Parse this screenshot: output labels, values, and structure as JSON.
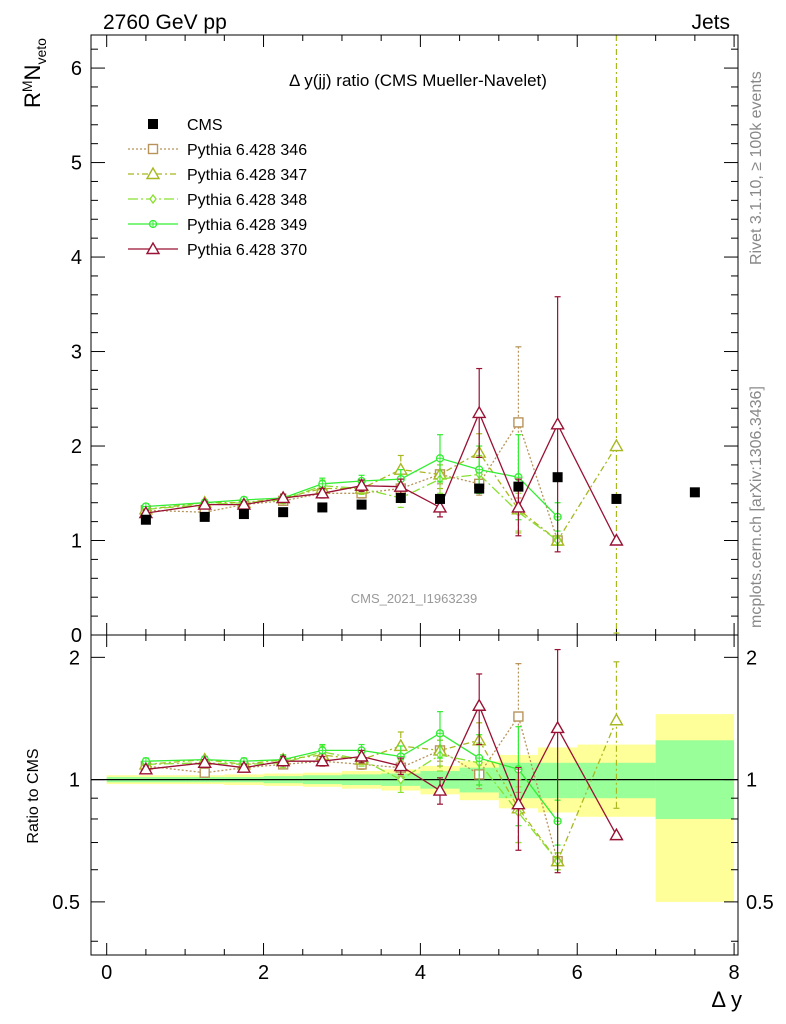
{
  "header": {
    "left": "2760 GeV pp",
    "right": "Jets"
  },
  "side_text": {
    "rivet": "Rivet 3.1.10, ≥ 100k events",
    "mcplots": "mcplots.cern.ch [arXiv:1306.3436]"
  },
  "watermark": "CMS_2021_I1963239",
  "colors": {
    "cms": "#000000",
    "p346": "#b8945a",
    "p347": "#a8b820",
    "p348": "#88e030",
    "p349": "#33ee33",
    "p370": "#991133",
    "band_stat": "#99ff99",
    "band_total": "#ffff99"
  },
  "chart_data": [
    {
      "type": "line",
      "title": "Δ y(jj) ratio (CMS Mueller-Navelet)",
      "ylabel": "R^M N_veto",
      "xlim": [
        -0.2,
        8.05
      ],
      "ylim": [
        0,
        6.35
      ],
      "yticks": [
        "0",
        "1",
        "2",
        "3",
        "4",
        "5",
        "6"
      ],
      "legend_position": "top-left",
      "series": [
        {
          "name": "CMS",
          "marker": "filled-square",
          "x": [
            0.5,
            1.25,
            1.75,
            2.25,
            2.75,
            3.25,
            3.75,
            4.25,
            4.75,
            5.25,
            5.75,
            6.5,
            7.5
          ],
          "y": [
            1.22,
            1.25,
            1.28,
            1.3,
            1.35,
            1.38,
            1.45,
            1.44,
            1.55,
            1.57,
            1.67,
            1.44,
            1.51
          ]
        },
        {
          "name": "Pythia 6.428 346",
          "marker": "open-square",
          "dash": "dotted",
          "x": [
            0.5,
            1.25,
            1.75,
            2.25,
            2.75,
            3.25,
            3.75,
            4.25,
            4.75,
            5.25,
            5.75
          ],
          "y": [
            1.32,
            1.3,
            1.38,
            1.42,
            1.5,
            1.5,
            1.55,
            1.7,
            1.6,
            2.25,
            1.0
          ],
          "err": [
            0.03,
            0.03,
            0.03,
            0.03,
            0.05,
            0.05,
            0.08,
            0.1,
            0.12,
            0.8,
            0.05
          ]
        },
        {
          "name": "Pythia 6.428 347",
          "marker": "open-triangle",
          "dash": "dash-dot",
          "x": [
            0.5,
            1.25,
            1.75,
            2.25,
            2.75,
            3.25,
            3.75,
            4.25,
            4.75,
            5.25,
            5.75,
            6.5
          ],
          "y": [
            1.33,
            1.4,
            1.4,
            1.45,
            1.55,
            1.55,
            1.75,
            1.7,
            1.93,
            1.33,
            1.0,
            2.0
          ],
          "err": [
            0.03,
            0.03,
            0.03,
            0.04,
            0.05,
            0.06,
            0.15,
            0.15,
            0.2,
            0.25,
            0.05,
            4.5
          ]
        },
        {
          "name": "Pythia 6.428 348",
          "marker": "open-diamond",
          "dash": "long-dash-dot",
          "x": [
            0.5,
            1.25,
            1.75,
            2.25,
            2.75,
            3.25,
            3.75,
            4.25,
            4.75,
            5.25,
            5.75
          ],
          "y": [
            1.33,
            1.38,
            1.4,
            1.43,
            1.58,
            1.55,
            1.45,
            1.65,
            1.7,
            1.3,
            1.0
          ],
          "err": [
            0.03,
            0.03,
            0.03,
            0.04,
            0.06,
            0.06,
            0.1,
            0.15,
            0.2,
            0.2,
            0.05
          ]
        },
        {
          "name": "Pythia 6.428 349",
          "marker": "open-circle-cross",
          "dash": "solid",
          "x": [
            0.5,
            1.25,
            1.75,
            2.25,
            2.75,
            3.25,
            3.75,
            4.25,
            4.75,
            5.25,
            5.75
          ],
          "y": [
            1.36,
            1.4,
            1.43,
            1.45,
            1.6,
            1.63,
            1.65,
            1.87,
            1.75,
            1.67,
            1.25
          ],
          "err": [
            0.03,
            0.03,
            0.03,
            0.04,
            0.06,
            0.06,
            0.1,
            0.25,
            0.25,
            0.45,
            0.15
          ]
        },
        {
          "name": "Pythia 6.428 370",
          "marker": "open-triangle",
          "dash": "solid",
          "x": [
            0.5,
            1.25,
            1.75,
            2.25,
            2.75,
            3.25,
            3.75,
            4.25,
            4.75,
            5.25,
            5.75,
            6.5
          ],
          "y": [
            1.29,
            1.38,
            1.38,
            1.45,
            1.5,
            1.58,
            1.57,
            1.35,
            2.35,
            1.35,
            2.23,
            1.0
          ],
          "err": [
            0.03,
            0.03,
            0.03,
            0.04,
            0.05,
            0.06,
            0.08,
            0.1,
            0.47,
            0.3,
            1.35,
            0.0
          ]
        }
      ]
    },
    {
      "type": "line",
      "ylabel": "Ratio to CMS",
      "xlabel": "Δ y",
      "xlim": [
        -0.2,
        8.05
      ],
      "ylim": [
        0.37,
        2.27
      ],
      "yticks": [
        "0.5",
        "1",
        "2"
      ],
      "xticks": [
        "0",
        "2",
        "4",
        "6",
        "8"
      ],
      "reference_line": 1.0,
      "bands": {
        "edges": [
          0.0,
          1.0,
          1.5,
          2.0,
          2.5,
          3.0,
          3.5,
          4.0,
          4.5,
          5.0,
          5.5,
          6.0,
          7.0,
          8.0
        ],
        "stat_low": [
          0.985,
          0.985,
          0.985,
          0.98,
          0.975,
          0.97,
          0.965,
          0.95,
          0.93,
          0.9,
          0.9,
          0.9,
          0.8
        ],
        "stat_high": [
          1.015,
          1.015,
          1.015,
          1.02,
          1.025,
          1.03,
          1.035,
          1.05,
          1.07,
          1.1,
          1.1,
          1.1,
          1.25
        ],
        "total_low": [
          0.975,
          0.975,
          0.97,
          0.965,
          0.96,
          0.95,
          0.94,
          0.92,
          0.89,
          0.85,
          0.83,
          0.81,
          0.5
        ],
        "total_high": [
          1.025,
          1.025,
          1.03,
          1.035,
          1.04,
          1.05,
          1.06,
          1.08,
          1.11,
          1.15,
          1.2,
          1.22,
          1.45
        ]
      },
      "series": [
        {
          "name": "Pythia 6.428 346",
          "ref": 1,
          "x": [
            0.5,
            1.25,
            1.75,
            2.25,
            2.75,
            3.25,
            3.75,
            4.25,
            4.75,
            5.25,
            5.75
          ],
          "y": [
            1.08,
            1.04,
            1.07,
            1.09,
            1.11,
            1.09,
            1.07,
            1.18,
            1.03,
            1.43,
            0.63
          ],
          "err": [
            0.02,
            0.02,
            0.02,
            0.02,
            0.03,
            0.03,
            0.05,
            0.07,
            0.08,
            0.5,
            0.03
          ]
        },
        {
          "name": "Pythia 6.428 347",
          "ref": 2,
          "x": [
            0.5,
            1.25,
            1.75,
            2.25,
            2.75,
            3.25,
            3.75,
            4.25,
            4.75,
            5.25,
            5.75,
            6.5
          ],
          "y": [
            1.09,
            1.12,
            1.09,
            1.12,
            1.15,
            1.12,
            1.21,
            1.18,
            1.25,
            0.85,
            0.63,
            1.4
          ],
          "err": [
            0.02,
            0.02,
            0.02,
            0.03,
            0.04,
            0.04,
            0.1,
            0.1,
            0.13,
            0.15,
            0.03,
            0.55
          ]
        },
        {
          "name": "Pythia 6.428 348",
          "ref": 3,
          "x": [
            0.5,
            1.25,
            1.75,
            2.25,
            2.75,
            3.25,
            3.75,
            4.25,
            4.75,
            5.25,
            5.75
          ],
          "y": [
            1.09,
            1.1,
            1.09,
            1.1,
            1.17,
            1.12,
            1.0,
            1.15,
            1.1,
            0.83,
            0.63
          ],
          "err": [
            0.02,
            0.02,
            0.02,
            0.03,
            0.04,
            0.04,
            0.07,
            0.1,
            0.13,
            0.13,
            0.03
          ]
        },
        {
          "name": "Pythia 6.428 349",
          "ref": 4,
          "x": [
            0.5,
            1.25,
            1.75,
            2.25,
            2.75,
            3.25,
            3.75,
            4.25,
            4.75,
            5.25,
            5.75
          ],
          "y": [
            1.11,
            1.12,
            1.11,
            1.12,
            1.18,
            1.18,
            1.14,
            1.3,
            1.13,
            1.06,
            0.79
          ],
          "err": [
            0.02,
            0.02,
            0.02,
            0.03,
            0.04,
            0.04,
            0.07,
            0.17,
            0.16,
            0.29,
            0.1
          ]
        },
        {
          "name": "Pythia 6.428 370",
          "ref": 5,
          "x": [
            0.5,
            1.25,
            1.75,
            2.25,
            2.75,
            3.25,
            3.75,
            4.25,
            4.75,
            5.25,
            5.75,
            6.5
          ],
          "y": [
            1.06,
            1.1,
            1.07,
            1.11,
            1.11,
            1.14,
            1.08,
            0.94,
            1.52,
            0.87,
            1.34,
            0.73
          ],
          "err": [
            0.02,
            0.02,
            0.02,
            0.03,
            0.03,
            0.04,
            0.05,
            0.07,
            0.3,
            0.2,
            0.75,
            0.0
          ]
        }
      ]
    }
  ]
}
